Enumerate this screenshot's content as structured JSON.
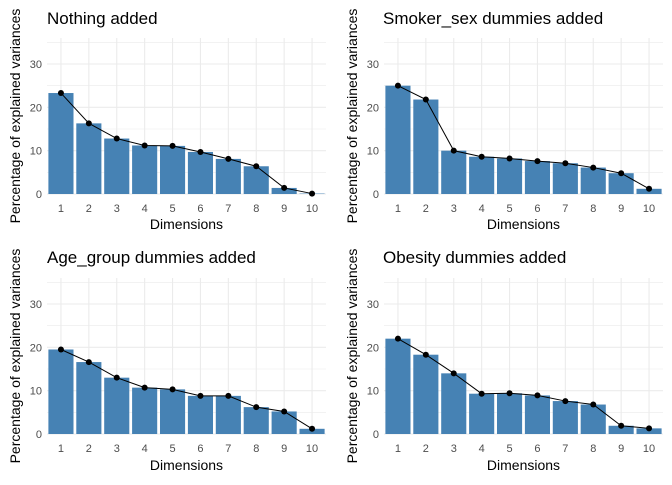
{
  "colors": {
    "bar": "#4682B4",
    "line": "#000000",
    "grid": "#EBEBEB",
    "tick_text": "#4D4D4D"
  },
  "chart_data": [
    {
      "type": "bar",
      "title": "Nothing added",
      "xlabel": "Dimensions",
      "ylabel": "Percentage of explained variances",
      "categories": [
        "1",
        "2",
        "3",
        "4",
        "5",
        "6",
        "7",
        "8",
        "9",
        "10"
      ],
      "values": [
        23.3,
        16.3,
        12.8,
        11.2,
        11.1,
        9.7,
        8.1,
        6.4,
        1.4,
        0.1
      ],
      "ylim": [
        0,
        36
      ],
      "yticks": [
        0,
        10,
        20,
        30
      ],
      "grid": true,
      "line_overlay": true
    },
    {
      "type": "bar",
      "title": "Smoker_sex dummies added",
      "xlabel": "Dimensions",
      "ylabel": "Percentage of explained variances",
      "categories": [
        "1",
        "2",
        "3",
        "4",
        "5",
        "6",
        "7",
        "8",
        "9",
        "10"
      ],
      "values": [
        25.0,
        21.8,
        10.0,
        8.6,
        8.2,
        7.6,
        7.1,
        6.1,
        4.8,
        1.2
      ],
      "ylim": [
        0,
        36
      ],
      "yticks": [
        0,
        10,
        20,
        30
      ],
      "grid": true,
      "line_overlay": true
    },
    {
      "type": "bar",
      "title": "Age_group dummies added",
      "xlabel": "Dimensions",
      "ylabel": "Percentage of explained variances",
      "categories": [
        "1",
        "2",
        "3",
        "4",
        "5",
        "6",
        "7",
        "8",
        "9",
        "10"
      ],
      "values": [
        19.5,
        16.6,
        13.0,
        10.7,
        10.3,
        8.8,
        8.8,
        6.2,
        5.2,
        1.2
      ],
      "ylim": [
        0,
        36
      ],
      "yticks": [
        0,
        10,
        20,
        30
      ],
      "grid": true,
      "line_overlay": true
    },
    {
      "type": "bar",
      "title": "Obesity dummies added",
      "xlabel": "Dimensions",
      "ylabel": "Percentage of explained variances",
      "categories": [
        "1",
        "2",
        "3",
        "4",
        "5",
        "6",
        "7",
        "8",
        "9",
        "10"
      ],
      "values": [
        22.0,
        18.3,
        14.0,
        9.3,
        9.4,
        8.9,
        7.6,
        6.8,
        1.9,
        1.3
      ],
      "ylim": [
        0,
        36
      ],
      "yticks": [
        0,
        10,
        20,
        30
      ],
      "grid": true,
      "line_overlay": true
    }
  ]
}
